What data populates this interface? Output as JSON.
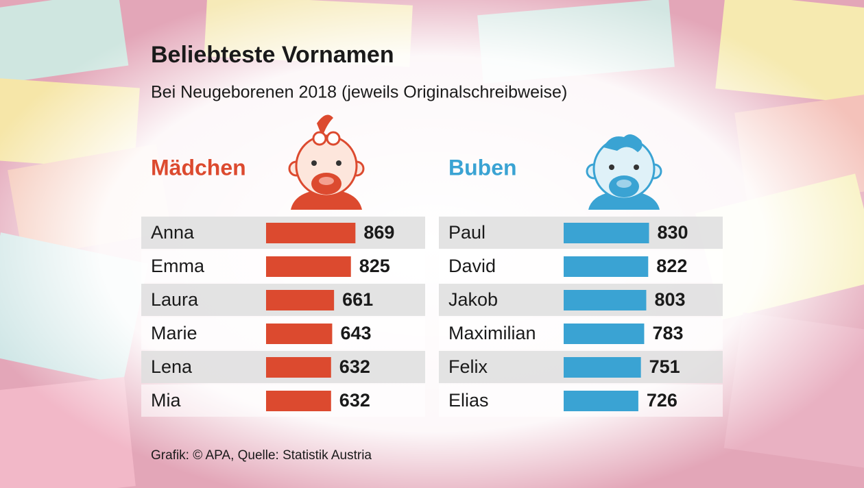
{
  "title": "Beliebteste Vornamen",
  "subtitle": "Bei Neugeborenen 2018 (jeweils Originalschreibweise)",
  "source": "Grafik: © APA, Quelle: Statistik Austria",
  "chart_data": [
    {
      "type": "bar",
      "title": "Mädchen",
      "color": "#dc4a2f",
      "categories": [
        "Anna",
        "Emma",
        "Laura",
        "Marie",
        "Lena",
        "Mia"
      ],
      "values": [
        869,
        825,
        661,
        643,
        632,
        632
      ]
    },
    {
      "type": "bar",
      "title": "Buben",
      "color": "#3aa3d3",
      "categories": [
        "Paul",
        "David",
        "Jakob",
        "Maximilian",
        "Felix",
        "Elias"
      ],
      "values": [
        830,
        822,
        803,
        783,
        751,
        726
      ]
    }
  ]
}
